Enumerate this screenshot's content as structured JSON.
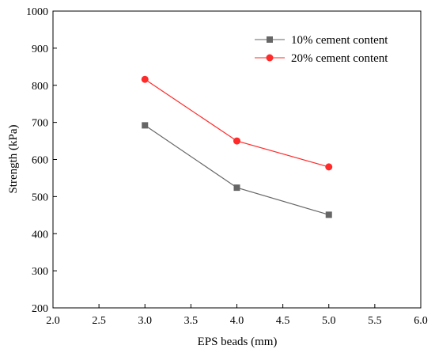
{
  "chart_data": {
    "type": "line",
    "xlabel": "EPS beads (mm)",
    "ylabel": "Strength (kPa)",
    "xlim": [
      2.0,
      6.0
    ],
    "ylim": [
      200,
      1000
    ],
    "xticks": [
      "2.0",
      "2.5",
      "3.0",
      "3.5",
      "4.0",
      "4.5",
      "5.0",
      "5.5",
      "6.0"
    ],
    "yticks": [
      "200",
      "300",
      "400",
      "500",
      "600",
      "700",
      "800",
      "900",
      "1000"
    ],
    "grid": false,
    "legend_position": "top-right",
    "series": [
      {
        "name": "10% cement content",
        "color": "#666666",
        "marker": "square",
        "x": [
          3.0,
          4.0,
          5.0
        ],
        "y": [
          692,
          524,
          451
        ]
      },
      {
        "name": "20% cement content",
        "color": "#ff2a2a",
        "marker": "circle",
        "x": [
          3.0,
          4.0,
          5.0
        ],
        "y": [
          816,
          650,
          580
        ]
      }
    ]
  }
}
